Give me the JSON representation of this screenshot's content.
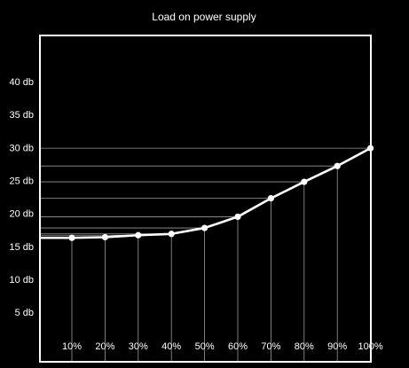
{
  "chart_data": {
    "type": "line",
    "title": "Load on power supply",
    "xlabel": "",
    "ylabel": "",
    "x": [
      "10%",
      "20%",
      "30%",
      "40%",
      "50%",
      "60%",
      "70%",
      "80%",
      "90%",
      "100%"
    ],
    "series": [
      {
        "values": [
          16.3,
          16.4,
          16.7,
          16.9,
          17.8,
          19.5,
          22.3,
          24.8,
          27.2,
          29.9
        ]
      }
    ],
    "start_value": 16.3,
    "y_ticks": [
      {
        "value": 5,
        "label": "5 db"
      },
      {
        "value": 10,
        "label": "10 db"
      },
      {
        "value": 15,
        "label": "15 db"
      },
      {
        "value": 20,
        "label": "20 db"
      },
      {
        "value": 25,
        "label": "25 db"
      },
      {
        "value": 30,
        "label": "30 db"
      },
      {
        "value": 35,
        "label": "35 db"
      },
      {
        "value": 40,
        "label": "40 db"
      }
    ],
    "ylim": [
      -2.5,
      47
    ],
    "grid": false,
    "guide_lines": true,
    "colors": {
      "background": "#000000",
      "line": "#ffffff",
      "frame": "#ffffff",
      "guides": "#9a9a9a"
    }
  }
}
